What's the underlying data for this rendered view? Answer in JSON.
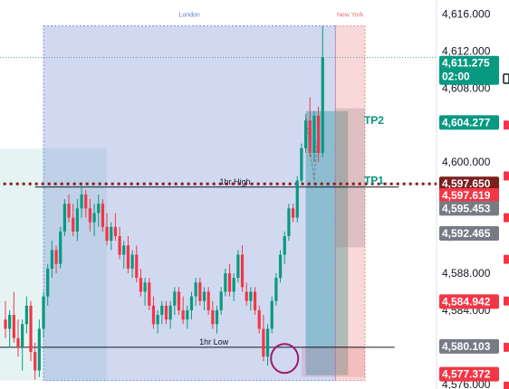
{
  "chart_data": {
    "type": "candlestick",
    "y_axis": {
      "range": [
        4575.5,
        4617.5
      ],
      "ticks": [
        "4,616.000",
        "4,612.000",
        "4,608.000",
        "4,604.000",
        "4,600.000",
        "4,596.000",
        "4,592.000",
        "4,588.000",
        "4,584.000",
        "4,580.000",
        "4,576.000"
      ],
      "tick_values": [
        4616,
        4612,
        4608,
        4604,
        4600,
        4596,
        4592,
        4588,
        4584,
        4580,
        4576
      ]
    },
    "sessions": [
      {
        "label": "London",
        "color": "#5b7bd5",
        "fill": "rgba(103,128,210,0.30)",
        "start": 9,
        "end": 78,
        "high": 4614.7,
        "low": 4576.4
      },
      {
        "label": "New York",
        "color": "#e57373",
        "fill": "rgba(229,115,115,0.28)",
        "start": 78,
        "end": 85,
        "high": 4614.7,
        "low": 4576.4
      }
    ],
    "zones": [
      {
        "start": -2,
        "end": 24,
        "high": 4601.5,
        "low": 4576.4,
        "fill": "rgba(38,166,154,0.12)"
      },
      {
        "start": 71,
        "end": 81,
        "high": 4605.5,
        "low": 4577.0,
        "fill": "rgba(38,166,154,0.45)"
      },
      {
        "start": 78,
        "end": 85,
        "high": 4605.8,
        "low": 4590.8,
        "fill": "rgba(120,123,134,0.25)"
      },
      {
        "start": 70,
        "end": 85,
        "high": 4580.1,
        "low": 4576.8,
        "fill": "rgba(229,115,115,0.25)"
      }
    ],
    "levels": [
      {
        "label": "1hr High",
        "price": 4597.3,
        "start": 7,
        "end": 93,
        "style": "solid",
        "color": "#131722"
      },
      {
        "label": "1hr Low",
        "price": 4580.0,
        "start": -2,
        "end": 92,
        "style": "solid",
        "color": "#131722"
      },
      {
        "label": "",
        "price": 4597.65,
        "start": -2,
        "end": 112,
        "style": "dotted",
        "color": "#8b1a1a"
      }
    ],
    "targets": [
      {
        "label": "TP2",
        "price": 4604.5,
        "at": 85
      },
      {
        "label": "TP1",
        "price": 4598.0,
        "at": 85
      }
    ],
    "price_badges": [
      {
        "value": "4,611.275",
        "sub": "02:00",
        "price": 4610.4,
        "color": "#089981"
      },
      {
        "value": "4,604.277",
        "price": 4604.277,
        "color": "#089981"
      },
      {
        "value": "4,597.650",
        "price": 4597.65,
        "color": "#7b1f1f"
      },
      {
        "value": "4,597.619",
        "price": 4596.4,
        "color": "#f23645"
      },
      {
        "value": "4,595.453",
        "price": 4595.0,
        "color": "#787b86"
      },
      {
        "value": "4,592.465",
        "price": 4592.3,
        "color": "#787b86"
      },
      {
        "value": "4,584.942",
        "price": 4584.942,
        "color": "#f23645"
      },
      {
        "value": "4,580.103",
        "price": 4580.103,
        "color": "#787b86"
      },
      {
        "value": "4,577.372",
        "price": 4577.1,
        "color": "#f23645"
      }
    ],
    "candles": [
      [
        4583.0,
        4585.0,
        4581.0,
        4582.0
      ],
      [
        4582.0,
        4584.0,
        4580.0,
        4583.5
      ],
      [
        4583.5,
        4586.0,
        4580.5,
        4581.0
      ],
      [
        4581.0,
        4583.0,
        4579.0,
        4580.0
      ],
      [
        4580.0,
        4583.0,
        4577.5,
        4582.5
      ],
      [
        4582.5,
        4585.5,
        4581.5,
        4584.5
      ],
      [
        4584.5,
        4585.0,
        4578.5,
        4579.5
      ],
      [
        4579.5,
        4580.5,
        4576.5,
        4577.5
      ],
      [
        4577.5,
        4583.0,
        4576.8,
        4582.0
      ],
      [
        4582.0,
        4586.0,
        4581.0,
        4585.5
      ],
      [
        4585.5,
        4589.0,
        4584.5,
        4588.5
      ],
      [
        4588.5,
        4591.5,
        4587.5,
        4590.5
      ],
      [
        4590.5,
        4591.0,
        4588.0,
        4589.0
      ],
      [
        4589.0,
        4593.0,
        4588.5,
        4592.5
      ],
      [
        4592.5,
        4596.0,
        4592.0,
        4595.5
      ],
      [
        4595.5,
        4596.5,
        4593.5,
        4594.0
      ],
      [
        4594.0,
        4595.5,
        4592.0,
        4592.5
      ],
      [
        4592.5,
        4596.0,
        4591.5,
        4595.0
      ],
      [
        4595.0,
        4597.5,
        4594.0,
        4596.5
      ],
      [
        4596.5,
        4597.0,
        4594.0,
        4595.0
      ],
      [
        4595.0,
        4596.0,
        4592.5,
        4593.5
      ],
      [
        4593.5,
        4595.5,
        4592.0,
        4594.5
      ],
      [
        4594.5,
        4596.5,
        4593.0,
        4595.5
      ],
      [
        4595.5,
        4596.0,
        4592.5,
        4593.0
      ],
      [
        4593.0,
        4594.5,
        4591.0,
        4591.5
      ],
      [
        4591.5,
        4593.5,
        4590.5,
        4593.0
      ],
      [
        4593.0,
        4594.5,
        4591.5,
        4592.0
      ],
      [
        4592.0,
        4593.0,
        4589.5,
        4590.0
      ],
      [
        4590.0,
        4591.5,
        4588.5,
        4591.0
      ],
      [
        4591.0,
        4592.0,
        4588.0,
        4588.5
      ],
      [
        4588.5,
        4590.5,
        4587.5,
        4590.0
      ],
      [
        4590.0,
        4591.0,
        4587.0,
        4587.5
      ],
      [
        4587.5,
        4588.5,
        4585.5,
        4586.0
      ],
      [
        4586.0,
        4587.5,
        4584.5,
        4587.0
      ],
      [
        4587.0,
        4587.5,
        4584.0,
        4584.5
      ],
      [
        4584.5,
        4585.5,
        4582.0,
        4582.5
      ],
      [
        4582.5,
        4584.0,
        4581.5,
        4583.5
      ],
      [
        4583.5,
        4585.0,
        4582.5,
        4584.5
      ],
      [
        4584.5,
        4585.0,
        4582.5,
        4583.0
      ],
      [
        4583.0,
        4585.0,
        4582.0,
        4584.5
      ],
      [
        4584.5,
        4586.5,
        4583.5,
        4586.0
      ],
      [
        4586.0,
        4586.5,
        4583.5,
        4584.0
      ],
      [
        4584.0,
        4585.5,
        4582.5,
        4583.0
      ],
      [
        4583.0,
        4584.5,
        4582.0,
        4584.0
      ],
      [
        4584.0,
        4586.0,
        4583.0,
        4585.5
      ],
      [
        4585.5,
        4587.5,
        4584.5,
        4587.0
      ],
      [
        4587.0,
        4587.5,
        4584.5,
        4585.0
      ],
      [
        4585.0,
        4586.5,
        4584.0,
        4586.0
      ],
      [
        4586.0,
        4586.5,
        4583.5,
        4584.0
      ],
      [
        4584.0,
        4585.0,
        4582.0,
        4582.5
      ],
      [
        4582.5,
        4584.5,
        4581.5,
        4584.0
      ],
      [
        4584.0,
        4586.5,
        4583.5,
        4586.0
      ],
      [
        4586.0,
        4588.5,
        4585.5,
        4588.0
      ],
      [
        4588.0,
        4589.0,
        4585.5,
        4586.0
      ],
      [
        4586.0,
        4588.0,
        4585.0,
        4587.5
      ],
      [
        4587.5,
        4590.5,
        4587.0,
        4590.0
      ],
      [
        4590.0,
        4591.0,
        4586.0,
        4586.5
      ],
      [
        4586.0,
        4587.0,
        4584.5,
        4585.0
      ],
      [
        4585.0,
        4586.5,
        4584.0,
        4586.0
      ],
      [
        4586.0,
        4586.5,
        4583.5,
        4584.0
      ],
      [
        4584.0,
        4584.5,
        4581.5,
        4582.0
      ],
      [
        4582.0,
        4583.5,
        4578.5,
        4579.0
      ],
      [
        4579.0,
        4582.5,
        4578.0,
        4582.0
      ],
      [
        4582.0,
        4585.5,
        4581.5,
        4585.0
      ],
      [
        4585.0,
        4588.0,
        4584.5,
        4587.5
      ],
      [
        4587.5,
        4590.5,
        4587.0,
        4590.0
      ],
      [
        4590.0,
        4592.5,
        4589.0,
        4592.0
      ],
      [
        4592.0,
        4595.5,
        4591.5,
        4595.0
      ],
      [
        4595.0,
        4595.5,
        4593.5,
        4594.0
      ],
      [
        4594.0,
        4598.5,
        4593.5,
        4598.0
      ],
      [
        4598.0,
        4602.0,
        4597.5,
        4601.5
      ],
      [
        4601.5,
        4605.0,
        4601.0,
        4604.5
      ],
      [
        4604.5,
        4607.0,
        4600.5,
        4601.0
      ],
      [
        4601.0,
        4605.5,
        4600.0,
        4605.0
      ],
      [
        4605.0,
        4606.0,
        4600.0,
        4601.0
      ],
      [
        4601.0,
        4614.7,
        4600.5,
        4611.3
      ]
    ]
  }
}
